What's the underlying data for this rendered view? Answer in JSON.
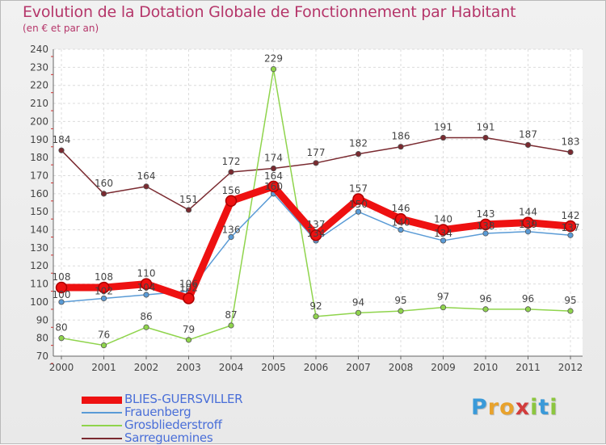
{
  "title": "Evolution de la Dotation Globale de Fonctionnement par Habitant",
  "subtitle": "(en € et par an)",
  "logo": {
    "text": "Proxiti",
    "letters": [
      "P",
      "r",
      "o",
      "x",
      "i",
      "t",
      "i"
    ]
  },
  "colors": {
    "title": "#b5366a",
    "legend_text": "#4a6fd8",
    "logo_letters": [
      "#3a9ad9",
      "#e8a22c",
      "#e8a22c",
      "#d23c3c",
      "#8cc63f",
      "#3a9ad9",
      "#8cc63f"
    ]
  },
  "chart_data": {
    "type": "line",
    "title": "Evolution de la Dotation Globale de Fonctionnement par Habitant",
    "subtitle": "(en € et par an)",
    "x": [
      "2000",
      "2001",
      "2002",
      "2003",
      "2004",
      "2005",
      "2006",
      "2007",
      "2008",
      "2009",
      "2010",
      "2011",
      "2012"
    ],
    "ylim": [
      70,
      240
    ],
    "yticks": [
      70,
      80,
      90,
      100,
      110,
      120,
      130,
      140,
      150,
      160,
      170,
      180,
      190,
      200,
      210,
      220,
      230,
      240
    ],
    "grid": true,
    "legend_position": "bottom-left",
    "series": [
      {
        "name": "Sarreguemines",
        "color": "#7a2a30",
        "emphasis": false,
        "values": [
          184,
          160,
          164,
          151,
          172,
          174,
          177,
          182,
          186,
          191,
          191,
          187,
          183
        ],
        "labels": [
          "184",
          "160",
          "164",
          "151",
          "172",
          "174",
          "177",
          "182",
          "186",
          "191",
          "191",
          "187",
          "183"
        ]
      },
      {
        "name": "Grosbliederstroff",
        "color": "#8fd44c",
        "emphasis": false,
        "values": [
          80,
          76,
          86,
          79,
          87,
          229,
          92,
          94,
          95,
          97,
          96,
          96,
          95
        ],
        "labels": [
          "80",
          "76",
          "86",
          "79",
          "87",
          "229",
          "92",
          "94",
          "95",
          "97",
          "96",
          "96",
          "95"
        ]
      },
      {
        "name": "Frauenberg",
        "color": "#5a9bd6",
        "emphasis": false,
        "values": [
          100,
          102,
          104,
          106,
          136,
          160,
          134,
          150,
          140,
          134,
          138,
          139,
          137
        ],
        "labels": [
          "100",
          "102",
          "104",
          "106",
          "136",
          "160",
          "134",
          "150",
          "140",
          "134",
          "138",
          "139",
          "137"
        ]
      },
      {
        "name": "BLIES-GUERSVILLER",
        "color": "#ee1111",
        "emphasis": true,
        "values": [
          108,
          108,
          110,
          102,
          156,
          164,
          137,
          157,
          146,
          140,
          143,
          144,
          142
        ],
        "labels": [
          "108",
          "108",
          "110",
          "102",
          "156",
          "164",
          "137",
          "157",
          "146",
          "140",
          "143",
          "144",
          "142"
        ]
      }
    ],
    "legend_order": [
      "BLIES-GUERSVILLER",
      "Frauenberg",
      "Grosbliederstroff",
      "Sarreguemines"
    ]
  }
}
